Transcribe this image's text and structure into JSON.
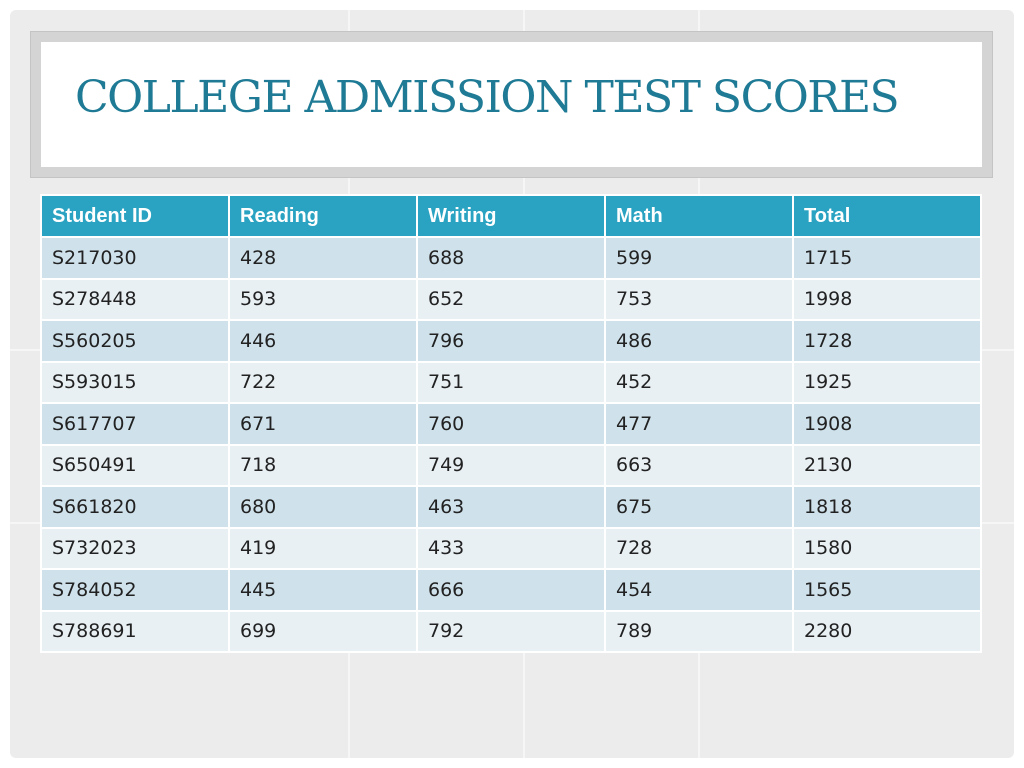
{
  "slide": {
    "title": "COLLEGE ADMISSION TEST SCORES"
  },
  "table": {
    "headers": [
      "Student ID",
      "Reading",
      "Writing",
      "Math",
      "Total"
    ],
    "rows": [
      [
        "S217030",
        "428",
        "688",
        "599",
        "1715"
      ],
      [
        "S278448",
        "593",
        "652",
        "753",
        "1998"
      ],
      [
        "S560205",
        "446",
        "796",
        "486",
        "1728"
      ],
      [
        "S593015",
        "722",
        "751",
        "452",
        "1925"
      ],
      [
        "S617707",
        "671",
        "760",
        "477",
        "1908"
      ],
      [
        "S650491",
        "718",
        "749",
        "663",
        "2130"
      ],
      [
        "S661820",
        "680",
        "463",
        "675",
        "1818"
      ],
      [
        "S732023",
        "419",
        "433",
        "728",
        "1580"
      ],
      [
        "S784052",
        "445",
        "666",
        "454",
        "1565"
      ],
      [
        "S788691",
        "699",
        "792",
        "789",
        "2280"
      ]
    ]
  },
  "colors": {
    "title": "#1f7b95",
    "header_bg": "#2aa3c2",
    "row_odd": "#cfe1eb",
    "row_even": "#e8f0f4",
    "slide_bg": "#ececec"
  }
}
